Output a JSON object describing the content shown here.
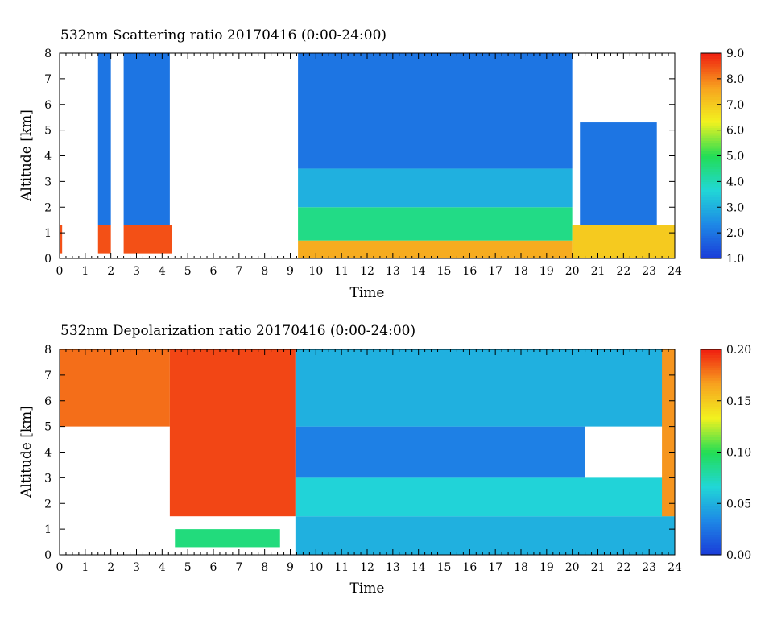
{
  "chart_data": [
    {
      "type": "heatmap",
      "title": "532nm Scattering ratio  20170416 (0:00-24:00)",
      "xlabel": "Time",
      "ylabel": "Altitude [km]",
      "xlim": [
        0,
        24
      ],
      "ylim": [
        0,
        8
      ],
      "x_ticks": [
        "0",
        "1",
        "2",
        "3",
        "4",
        "5",
        "6",
        "7",
        "8",
        "9",
        "10",
        "11",
        "12",
        "13",
        "14",
        "15",
        "16",
        "17",
        "18",
        "19",
        "20",
        "21",
        "22",
        "23",
        "24"
      ],
      "y_ticks": [
        "0",
        "1",
        "2",
        "3",
        "4",
        "5",
        "6",
        "7",
        "8"
      ],
      "colorbar": {
        "range": [
          1.0,
          9.0
        ],
        "tick_values": [
          1.0,
          2.0,
          3.0,
          4.0,
          5.0,
          6.0,
          7.0,
          8.0,
          9.0
        ],
        "tick_labels": [
          "1.0",
          "2.0",
          "3.0",
          "4.0",
          "5.0",
          "6.0",
          "7.0",
          "8.0",
          "9.0"
        ],
        "colors": [
          "#1a3bd9",
          "#1e88e6",
          "#21d7d7",
          "#22dd55",
          "#f2f21f",
          "#f7a21f",
          "#f01f10"
        ]
      },
      "missing_intervals": [
        [
          0.1,
          1.5
        ],
        [
          2.0,
          2.5
        ],
        [
          4.4,
          9.3
        ]
      ],
      "features": [
        {
          "time_range": [
            0,
            4.4
          ],
          "altitude_km": [
            0.2,
            1.3
          ],
          "value_approx": 8.5
        },
        {
          "time_range": [
            1.4,
            4.3
          ],
          "altitude_km": [
            1.3,
            8.0
          ],
          "value_approx": 2.0
        },
        {
          "time_range": [
            9.3,
            20.0
          ],
          "altitude_km": [
            0.0,
            0.7
          ],
          "value_approx": 7.5
        },
        {
          "time_range": [
            9.3,
            20.0
          ],
          "altitude_km": [
            0.7,
            2.0
          ],
          "value_approx": 4.5
        },
        {
          "time_range": [
            9.3,
            20.0
          ],
          "altitude_km": [
            2.0,
            3.5
          ],
          "value_approx": 3.0
        },
        {
          "time_range": [
            9.3,
            20.0
          ],
          "altitude_km": [
            3.5,
            8.0
          ],
          "value_approx": 2.0
        },
        {
          "time_range": [
            20.0,
            24.0
          ],
          "altitude_km": [
            0.0,
            1.3
          ],
          "value_approx": 7.0
        },
        {
          "time_range": [
            20.3,
            23.3
          ],
          "altitude_km": [
            1.3,
            5.3
          ],
          "value_approx": 2.0
        }
      ]
    },
    {
      "type": "heatmap",
      "title": "532nm Depolarization ratio  20170416 (0:00-24:00)",
      "xlabel": "Time",
      "ylabel": "Altitude [km]",
      "xlim": [
        0,
        24
      ],
      "ylim": [
        0,
        8
      ],
      "x_ticks": [
        "0",
        "1",
        "2",
        "3",
        "4",
        "5",
        "6",
        "7",
        "8",
        "9",
        "10",
        "11",
        "12",
        "13",
        "14",
        "15",
        "16",
        "17",
        "18",
        "19",
        "20",
        "21",
        "22",
        "23",
        "24"
      ],
      "y_ticks": [
        "0",
        "1",
        "2",
        "3",
        "4",
        "5",
        "6",
        "7",
        "8"
      ],
      "colorbar": {
        "range": [
          0.0,
          0.2
        ],
        "tick_values": [
          0.0,
          0.05,
          0.1,
          0.15,
          0.2
        ],
        "tick_labels": [
          "0.00",
          "0.05",
          "0.10",
          "0.15",
          "0.20"
        ],
        "colors": [
          "#1a3bd9",
          "#1e88e6",
          "#21d7d7",
          "#22dd55",
          "#f2f21f",
          "#f7a21f",
          "#f01f10"
        ]
      },
      "features": [
        {
          "time_range": [
            0,
            4.3
          ],
          "altitude_km": [
            5.0,
            8.0
          ],
          "value_approx": 0.18
        },
        {
          "time_range": [
            4.3,
            9.2
          ],
          "altitude_km": [
            1.5,
            8.0
          ],
          "value_approx": 0.19
        },
        {
          "time_range": [
            4.5,
            8.6
          ],
          "altitude_km": [
            0.3,
            1.0
          ],
          "value_approx": 0.09
        },
        {
          "time_range": [
            9.2,
            24.0
          ],
          "altitude_km": [
            0.0,
            1.5
          ],
          "value_approx": 0.05
        },
        {
          "time_range": [
            9.2,
            24.0
          ],
          "altitude_km": [
            1.5,
            3.0
          ],
          "value_approx": 0.065
        },
        {
          "time_range": [
            9.2,
            20.5
          ],
          "altitude_km": [
            3.0,
            5.0
          ],
          "value_approx": 0.03
        },
        {
          "time_range": [
            9.2,
            24.0
          ],
          "altitude_km": [
            5.0,
            8.0
          ],
          "value_approx": 0.05
        },
        {
          "time_range": [
            23.5,
            24.0
          ],
          "altitude_km": [
            1.5,
            8.0
          ],
          "value_approx": 0.17
        }
      ]
    }
  ]
}
